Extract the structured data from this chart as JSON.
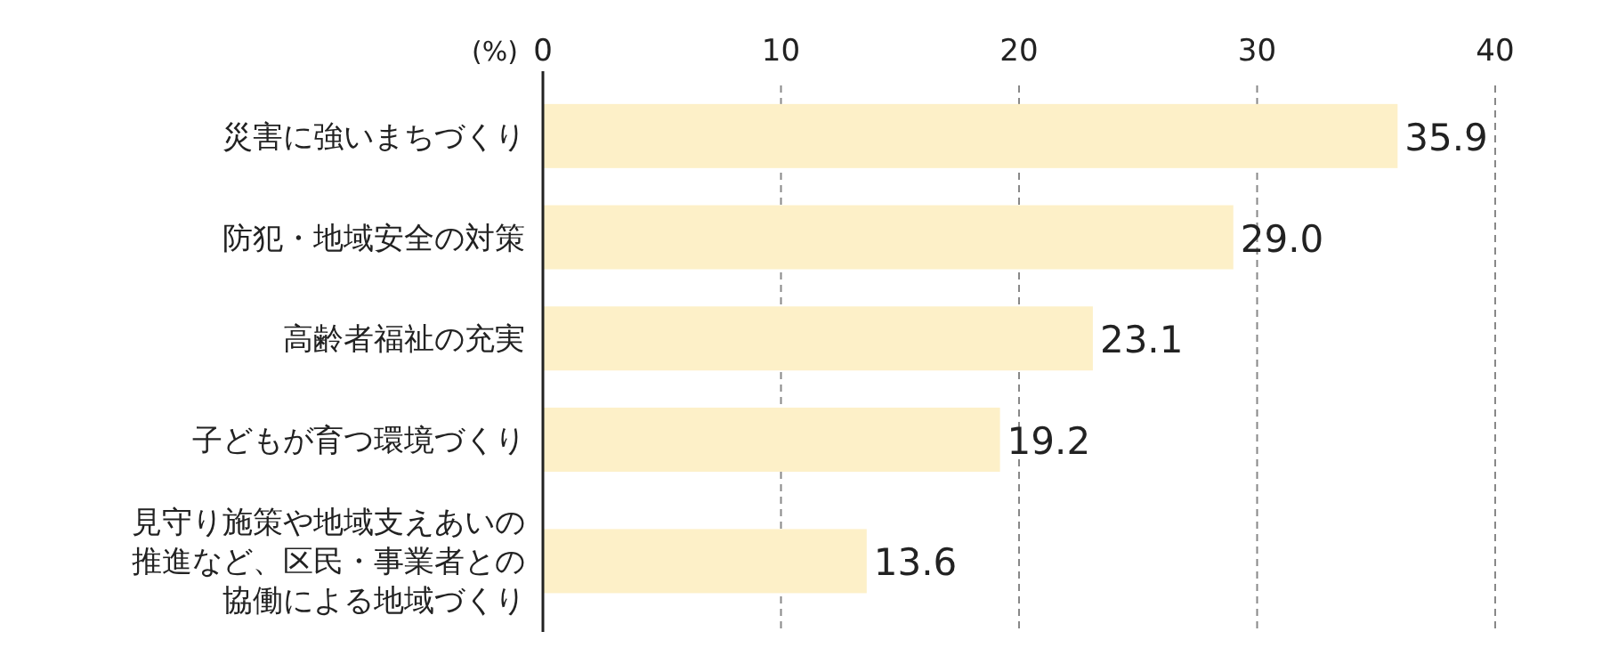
{
  "chart_data": {
    "type": "bar",
    "orientation": "horizontal",
    "xlabel": "(%)",
    "categories": [
      "災害に強いまちづくり",
      "防犯・地域安全の対策",
      "高齢者福祉の充実",
      "子どもが育つ環境づくり",
      "見守り施策や地域支えあいの推進など、区民・事業者との協働による地域づくり"
    ],
    "values": [
      35.9,
      29.0,
      23.1,
      19.2,
      13.6
    ],
    "value_labels": [
      "35.9",
      "29.0",
      "23.1",
      "19.2",
      "13.6"
    ],
    "color": "#fdf0c8",
    "xlim": [
      0,
      40
    ],
    "xticks": [
      0,
      10,
      20,
      30,
      40
    ],
    "grid": "x"
  }
}
